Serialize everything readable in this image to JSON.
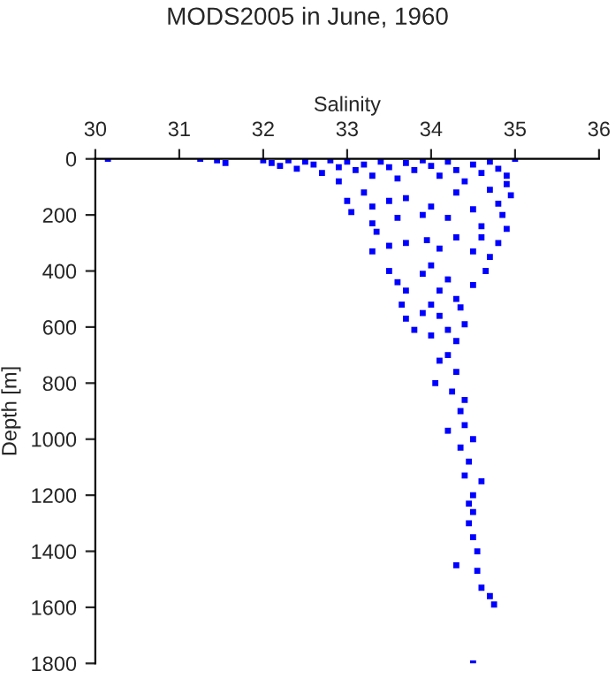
{
  "chart_data": {
    "type": "scatter",
    "title": "MODS2005 in June, 1960",
    "xlabel": "Salinity",
    "ylabel": "Depth [m]",
    "xlim": [
      30,
      36
    ],
    "xticks": [
      30,
      31,
      32,
      33,
      34,
      35,
      36
    ],
    "ylim": [
      1800,
      0
    ],
    "yticks": [
      0,
      200,
      400,
      600,
      800,
      1000,
      1200,
      1400,
      1600,
      1800
    ],
    "marker": "square",
    "grid": false,
    "legend": false,
    "series": [
      {
        "color": "#0000ff",
        "x": [
          30.15,
          31.25,
          31.45,
          31.55,
          32.0,
          32.1,
          32.2,
          32.3,
          32.4,
          32.5,
          32.6,
          32.7,
          32.8,
          32.9,
          33.0,
          33.1,
          33.2,
          33.3,
          33.4,
          33.5,
          33.6,
          33.7,
          33.8,
          33.9,
          34.0,
          34.1,
          34.2,
          34.3,
          34.4,
          34.5,
          34.6,
          34.7,
          34.8,
          34.9,
          35.0,
          32.9,
          33.0,
          33.05,
          33.2,
          33.3,
          33.3,
          33.5,
          33.6,
          33.7,
          33.9,
          34.0,
          34.2,
          34.3,
          34.5,
          34.6,
          34.7,
          34.8,
          34.85,
          34.9,
          34.9,
          34.95,
          34.8,
          34.7,
          34.6,
          34.5,
          34.3,
          34.1,
          33.95,
          33.7,
          33.5,
          33.3,
          33.35,
          33.5,
          33.6,
          33.7,
          33.9,
          34.0,
          34.2,
          34.3,
          34.5,
          34.65,
          34.1,
          34.0,
          33.65,
          33.7,
          33.9,
          34.1,
          34.2,
          34.35,
          34.4,
          34.0,
          34.3,
          34.2,
          33.8,
          34.1,
          34.3,
          34.05,
          34.25,
          34.4,
          34.35,
          34.4,
          34.2,
          34.5,
          34.35,
          34.45,
          34.4,
          34.6,
          34.5,
          34.45,
          34.5,
          34.45,
          34.5,
          34.55,
          34.3,
          34.55,
          34.6,
          34.7,
          34.75,
          34.5
        ],
        "values": [
          0,
          0,
          5,
          15,
          5,
          15,
          25,
          5,
          35,
          10,
          20,
          50,
          5,
          30,
          10,
          40,
          20,
          60,
          10,
          30,
          70,
          15,
          40,
          5,
          25,
          60,
          10,
          40,
          80,
          20,
          50,
          10,
          35,
          60,
          0,
          80,
          150,
          190,
          120,
          170,
          230,
          150,
          210,
          140,
          200,
          170,
          210,
          120,
          180,
          240,
          110,
          160,
          200,
          90,
          250,
          130,
          300,
          350,
          280,
          330,
          280,
          320,
          290,
          300,
          310,
          330,
          260,
          400,
          440,
          470,
          410,
          380,
          430,
          500,
          450,
          400,
          470,
          520,
          520,
          570,
          550,
          560,
          610,
          530,
          590,
          630,
          650,
          700,
          610,
          720,
          760,
          800,
          830,
          860,
          900,
          950,
          970,
          1000,
          1030,
          1080,
          1130,
          1150,
          1200,
          1230,
          1260,
          1300,
          1350,
          1400,
          1450,
          1470,
          1530,
          1560,
          1590,
          1800
        ]
      }
    ]
  }
}
